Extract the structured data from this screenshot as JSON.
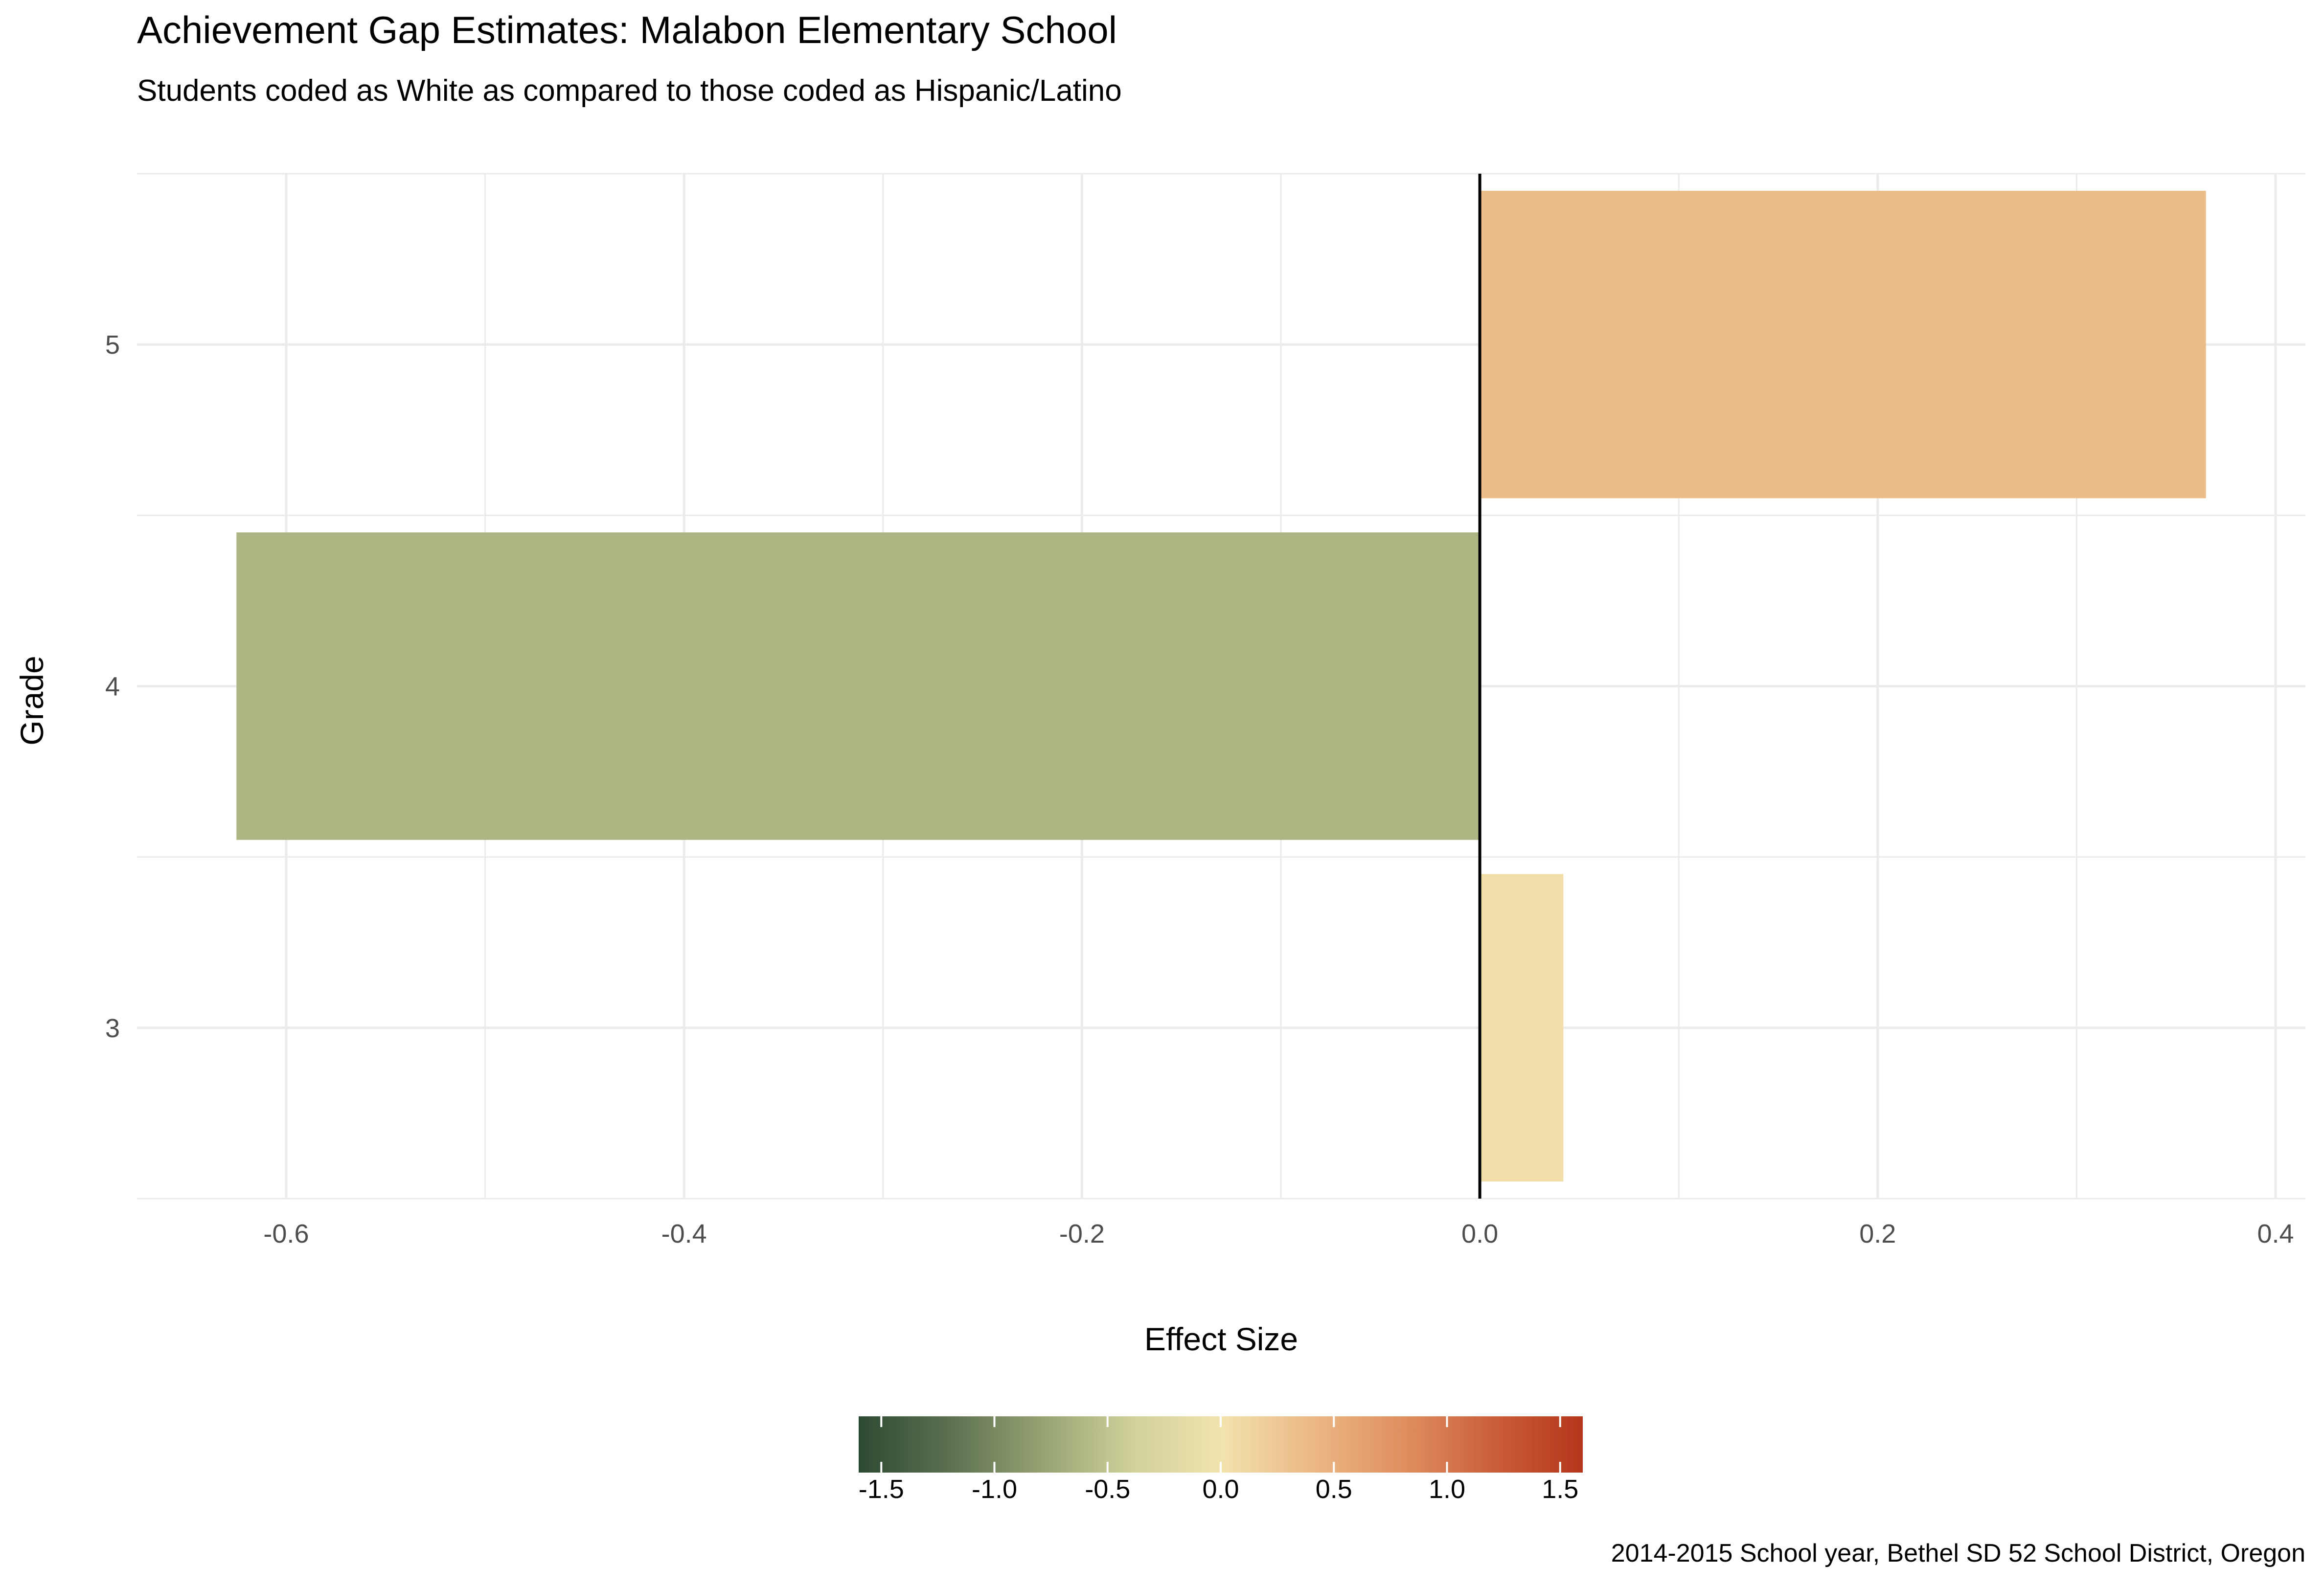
{
  "chart_data": {
    "type": "bar",
    "orientation": "horizontal",
    "title": "Achievement Gap Estimates: Malabon Elementary School",
    "subtitle": "Students coded as White as compared to those coded as Hispanic/Latino",
    "caption": "2014-2015 School year, Bethel SD 52 School District, Oregon",
    "xlabel": "Effect Size",
    "ylabel": "Grade",
    "categories": [
      "3",
      "4",
      "5"
    ],
    "values": [
      0.042,
      -0.625,
      0.365
    ],
    "xlim": [
      -0.675,
      0.415
    ],
    "x_ticks": [
      -0.6,
      -0.4,
      -0.2,
      0.0,
      0.2,
      0.4
    ],
    "x_tick_labels": [
      "-0.6",
      "-0.4",
      "-0.2",
      "0.0",
      "0.2",
      "0.4"
    ],
    "grid": true,
    "legend": {
      "type": "colorbar",
      "placement": "bottom",
      "range": [
        -1.6,
        1.6
      ],
      "ticks": [
        -1.5,
        -1.0,
        -0.5,
        0.0,
        0.5,
        1.0,
        1.5
      ],
      "tick_labels": [
        "-1.5",
        "-1.0",
        "-0.5",
        "0.0",
        "0.5",
        "1.0",
        "1.5"
      ],
      "colors": [
        "#2c4a32",
        "#5c7050",
        "#93a070",
        "#cfd09a",
        "#f2e3ad",
        "#ebb886",
        "#e09060",
        "#ca5f3c",
        "#b5361c"
      ]
    }
  }
}
